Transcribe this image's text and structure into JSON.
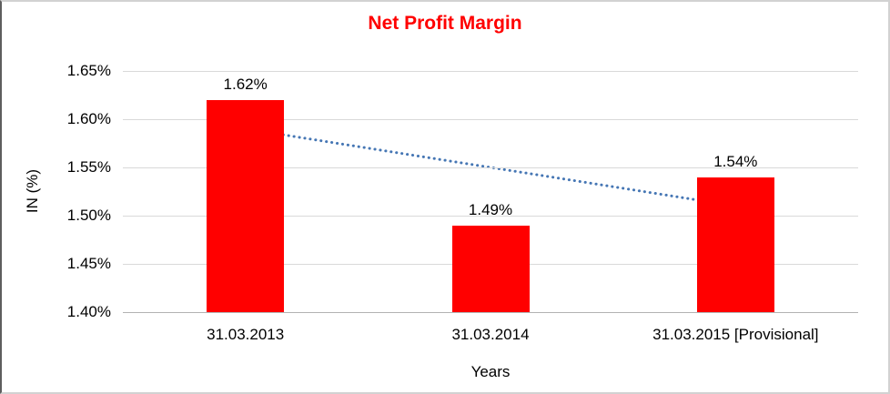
{
  "chart_data": {
    "type": "bar",
    "title": "Net Profit Margin",
    "title_color": "#ff0000",
    "xlabel": "Years",
    "ylabel": "IN (%)",
    "categories": [
      "31.03.2013",
      "31.03.2014",
      "31.03.2015 [Provisional]"
    ],
    "values": [
      1.62,
      1.49,
      1.54
    ],
    "data_labels": [
      "1.62%",
      "1.49%",
      "1.54%"
    ],
    "bar_color": "#ff0000",
    "ylim": [
      1.4,
      1.65
    ],
    "ytick_step": 0.05,
    "ytick_labels": [
      "1.40%",
      "1.45%",
      "1.50%",
      "1.55%",
      "1.60%",
      "1.65%"
    ],
    "grid": true,
    "legend": "none",
    "trendline": {
      "type": "linear",
      "style": "dotted",
      "color": "#4576b4",
      "start_value": 1.59,
      "end_value": 1.51
    }
  }
}
